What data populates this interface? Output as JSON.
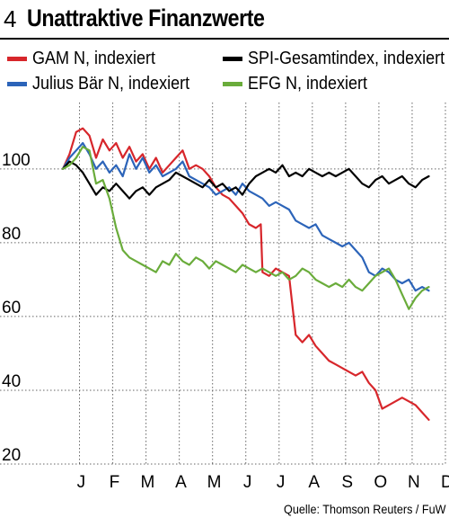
{
  "header": {
    "number": "4",
    "title": "Unattraktive Finanzwerte"
  },
  "source": "Quelle: Thomson Reuters / FuW",
  "chart_data": {
    "type": "line",
    "title": "Unattraktive Finanzwerte",
    "xlabel": "",
    "ylabel": "",
    "ylim": [
      20,
      118
    ],
    "y_ticks": [
      20,
      40,
      60,
      80,
      100
    ],
    "x_tick_labels": [
      "J",
      "F",
      "M",
      "A",
      "M",
      "J",
      "J",
      "A",
      "S",
      "O",
      "N",
      "D"
    ],
    "grid": "dotted horizontal and vertical",
    "legend": "top",
    "series": [
      {
        "name": "GAM N, indexiert",
        "color": "#d7262b",
        "values": [
          [
            0,
            100
          ],
          [
            0.2,
            104
          ],
          [
            0.4,
            110
          ],
          [
            0.6,
            111
          ],
          [
            0.8,
            109
          ],
          [
            1.0,
            103
          ],
          [
            1.2,
            108
          ],
          [
            1.4,
            105
          ],
          [
            1.6,
            107
          ],
          [
            1.8,
            103
          ],
          [
            2.0,
            106
          ],
          [
            2.2,
            102
          ],
          [
            2.4,
            104
          ],
          [
            2.6,
            100
          ],
          [
            2.8,
            103
          ],
          [
            3.0,
            99
          ],
          [
            3.2,
            101
          ],
          [
            3.4,
            103
          ],
          [
            3.6,
            105
          ],
          [
            3.8,
            100
          ],
          [
            4.0,
            101
          ],
          [
            4.2,
            100
          ],
          [
            4.4,
            98
          ],
          [
            4.6,
            95
          ],
          [
            4.8,
            93
          ],
          [
            5.0,
            92
          ],
          [
            5.2,
            90
          ],
          [
            5.4,
            88
          ],
          [
            5.6,
            85
          ],
          [
            5.8,
            84
          ],
          [
            5.95,
            85
          ],
          [
            6.0,
            72
          ],
          [
            6.2,
            71
          ],
          [
            6.4,
            73
          ],
          [
            6.6,
            72
          ],
          [
            6.8,
            71
          ],
          [
            7.0,
            55
          ],
          [
            7.2,
            53
          ],
          [
            7.4,
            55
          ],
          [
            7.6,
            52
          ],
          [
            7.8,
            50
          ],
          [
            8.0,
            48
          ],
          [
            8.2,
            47
          ],
          [
            8.4,
            46
          ],
          [
            8.6,
            45
          ],
          [
            8.8,
            44
          ],
          [
            9.0,
            45
          ],
          [
            9.2,
            42
          ],
          [
            9.4,
            40
          ],
          [
            9.6,
            35
          ],
          [
            9.8,
            36
          ],
          [
            10.0,
            37
          ],
          [
            10.2,
            38
          ],
          [
            10.4,
            37
          ],
          [
            10.6,
            36
          ],
          [
            10.8,
            34
          ],
          [
            11.0,
            32
          ]
        ]
      },
      {
        "name": "SPI-Gesamtindex, indexiert",
        "color": "#000000",
        "values": [
          [
            0,
            100
          ],
          [
            0.2,
            102
          ],
          [
            0.4,
            101
          ],
          [
            0.6,
            99
          ],
          [
            0.8,
            96
          ],
          [
            1.0,
            93
          ],
          [
            1.2,
            95
          ],
          [
            1.4,
            94
          ],
          [
            1.6,
            96
          ],
          [
            1.8,
            94
          ],
          [
            2.0,
            92
          ],
          [
            2.2,
            94
          ],
          [
            2.4,
            95
          ],
          [
            2.6,
            93
          ],
          [
            2.8,
            95
          ],
          [
            3.0,
            96
          ],
          [
            3.2,
            97
          ],
          [
            3.4,
            99
          ],
          [
            3.6,
            98
          ],
          [
            3.8,
            97
          ],
          [
            4.0,
            96
          ],
          [
            4.2,
            95
          ],
          [
            4.4,
            97
          ],
          [
            4.6,
            95
          ],
          [
            4.8,
            96
          ],
          [
            5.0,
            94
          ],
          [
            5.2,
            95
          ],
          [
            5.4,
            93
          ],
          [
            5.6,
            96
          ],
          [
            5.8,
            98
          ],
          [
            6.0,
            99
          ],
          [
            6.2,
            100
          ],
          [
            6.4,
            99
          ],
          [
            6.6,
            101
          ],
          [
            6.8,
            98
          ],
          [
            7.0,
            99
          ],
          [
            7.2,
            98
          ],
          [
            7.4,
            100
          ],
          [
            7.6,
            99
          ],
          [
            7.8,
            98
          ],
          [
            8.0,
            99
          ],
          [
            8.2,
            98
          ],
          [
            8.4,
            99
          ],
          [
            8.6,
            100
          ],
          [
            8.8,
            98
          ],
          [
            9.0,
            96
          ],
          [
            9.2,
            95
          ],
          [
            9.4,
            97
          ],
          [
            9.6,
            98
          ],
          [
            9.8,
            96
          ],
          [
            10.0,
            97
          ],
          [
            10.2,
            98
          ],
          [
            10.4,
            96
          ],
          [
            10.6,
            95
          ],
          [
            10.8,
            97
          ],
          [
            11.0,
            98
          ]
        ]
      },
      {
        "name": "Julius Bär N, indexiert",
        "color": "#2c64b9",
        "values": [
          [
            0,
            100
          ],
          [
            0.2,
            103
          ],
          [
            0.4,
            105
          ],
          [
            0.6,
            107
          ],
          [
            0.8,
            104
          ],
          [
            1.0,
            100
          ],
          [
            1.2,
            102
          ],
          [
            1.4,
            99
          ],
          [
            1.6,
            101
          ],
          [
            1.8,
            98
          ],
          [
            2.0,
            104
          ],
          [
            2.2,
            100
          ],
          [
            2.4,
            103
          ],
          [
            2.6,
            99
          ],
          [
            2.8,
            101
          ],
          [
            3.0,
            98
          ],
          [
            3.2,
            99
          ],
          [
            3.4,
            100
          ],
          [
            3.6,
            102
          ],
          [
            3.8,
            98
          ],
          [
            4.0,
            97
          ],
          [
            4.2,
            96
          ],
          [
            4.4,
            95
          ],
          [
            4.6,
            93
          ],
          [
            4.8,
            94
          ],
          [
            5.0,
            95
          ],
          [
            5.2,
            93
          ],
          [
            5.4,
            96
          ],
          [
            5.6,
            94
          ],
          [
            5.8,
            93
          ],
          [
            6.0,
            92
          ],
          [
            6.2,
            90
          ],
          [
            6.4,
            91
          ],
          [
            6.6,
            90
          ],
          [
            6.8,
            89
          ],
          [
            7.0,
            86
          ],
          [
            7.2,
            85
          ],
          [
            7.4,
            84
          ],
          [
            7.6,
            85
          ],
          [
            7.8,
            82
          ],
          [
            8.0,
            81
          ],
          [
            8.2,
            80
          ],
          [
            8.4,
            79
          ],
          [
            8.6,
            80
          ],
          [
            8.8,
            78
          ],
          [
            9.0,
            76
          ],
          [
            9.2,
            72
          ],
          [
            9.4,
            71
          ],
          [
            9.6,
            73
          ],
          [
            9.8,
            72
          ],
          [
            10.0,
            70
          ],
          [
            10.2,
            69
          ],
          [
            10.4,
            70
          ],
          [
            10.6,
            67
          ],
          [
            10.8,
            68
          ],
          [
            11.0,
            67
          ]
        ]
      },
      {
        "name": "EFG N, indexiert",
        "color": "#6aac3b",
        "values": [
          [
            0,
            100
          ],
          [
            0.2,
            101
          ],
          [
            0.4,
            103
          ],
          [
            0.6,
            106
          ],
          [
            0.8,
            105
          ],
          [
            1.0,
            96
          ],
          [
            1.2,
            97
          ],
          [
            1.4,
            92
          ],
          [
            1.6,
            84
          ],
          [
            1.8,
            78
          ],
          [
            2.0,
            76
          ],
          [
            2.2,
            75
          ],
          [
            2.4,
            74
          ],
          [
            2.6,
            73
          ],
          [
            2.8,
            72
          ],
          [
            3.0,
            75
          ],
          [
            3.2,
            74
          ],
          [
            3.4,
            77
          ],
          [
            3.6,
            75
          ],
          [
            3.8,
            74
          ],
          [
            4.0,
            76
          ],
          [
            4.2,
            75
          ],
          [
            4.4,
            73
          ],
          [
            4.6,
            75
          ],
          [
            4.8,
            74
          ],
          [
            5.0,
            73
          ],
          [
            5.2,
            72
          ],
          [
            5.4,
            74
          ],
          [
            5.6,
            73
          ],
          [
            5.8,
            72
          ],
          [
            6.0,
            73
          ],
          [
            6.2,
            72
          ],
          [
            6.4,
            71
          ],
          [
            6.6,
            72
          ],
          [
            6.8,
            70
          ],
          [
            7.0,
            71
          ],
          [
            7.2,
            73
          ],
          [
            7.4,
            72
          ],
          [
            7.6,
            70
          ],
          [
            7.8,
            69
          ],
          [
            8.0,
            68
          ],
          [
            8.2,
            69
          ],
          [
            8.4,
            68
          ],
          [
            8.6,
            70
          ],
          [
            8.8,
            68
          ],
          [
            9.0,
            67
          ],
          [
            9.2,
            69
          ],
          [
            9.4,
            71
          ],
          [
            9.6,
            72
          ],
          [
            9.8,
            73
          ],
          [
            10.0,
            70
          ],
          [
            10.2,
            66
          ],
          [
            10.4,
            62
          ],
          [
            10.6,
            65
          ],
          [
            10.8,
            67
          ],
          [
            11.0,
            68
          ]
        ]
      }
    ]
  }
}
